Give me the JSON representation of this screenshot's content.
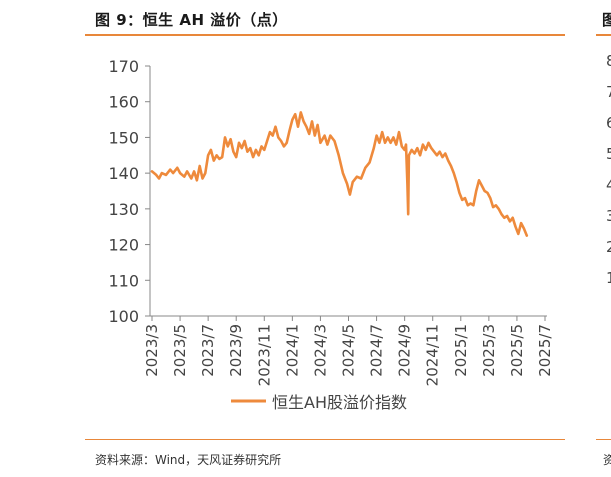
{
  "figure": {
    "title": "图 9：恒生 AH 溢价（点）",
    "source": "资料来源：Wind，天风证券研究所"
  },
  "right_panel": {
    "title_fragment": "图",
    "source_fragment": "资",
    "tick_fragments": [
      "8",
      "7",
      "6",
      "5",
      "4",
      "3",
      "2",
      "1"
    ]
  },
  "colors": {
    "accent": "#e8873a",
    "line": "#ee8a3c"
  },
  "chart_data": {
    "type": "line",
    "title": "",
    "xlabel": "",
    "ylabel": "",
    "ylim": [
      100,
      170
    ],
    "yticks": [
      100,
      110,
      120,
      130,
      140,
      150,
      160,
      170
    ],
    "xticks": [
      "2023/3",
      "2023/5",
      "2023/7",
      "2023/9",
      "2023/11",
      "2024/1",
      "2024/3",
      "2024/5",
      "2024/7",
      "2024/9",
      "2024/11",
      "2025/1",
      "2025/3",
      "2025/5",
      "2025/7"
    ],
    "legend": "bottom-center",
    "series": [
      {
        "name": "恒生AH股溢价指数",
        "values": [
          [
            0.0,
            140.5
          ],
          [
            0.3,
            139.5
          ],
          [
            0.5,
            138.5
          ],
          [
            0.7,
            140.0
          ],
          [
            1.0,
            139.5
          ],
          [
            1.3,
            141.0
          ],
          [
            1.5,
            140.0
          ],
          [
            1.8,
            141.5
          ],
          [
            2.0,
            140.0
          ],
          [
            2.3,
            139.0
          ],
          [
            2.5,
            140.5
          ],
          [
            2.8,
            138.5
          ],
          [
            3.0,
            140.5
          ],
          [
            3.2,
            138.0
          ],
          [
            3.4,
            142.0
          ],
          [
            3.6,
            138.5
          ],
          [
            3.8,
            140.0
          ],
          [
            4.0,
            145.0
          ],
          [
            4.2,
            146.5
          ],
          [
            4.4,
            143.5
          ],
          [
            4.6,
            145.0
          ],
          [
            4.8,
            144.0
          ],
          [
            5.0,
            144.5
          ],
          [
            5.2,
            150.0
          ],
          [
            5.4,
            147.5
          ],
          [
            5.6,
            149.5
          ],
          [
            5.8,
            146.0
          ],
          [
            6.0,
            144.5
          ],
          [
            6.2,
            148.5
          ],
          [
            6.4,
            147.0
          ],
          [
            6.6,
            149.0
          ],
          [
            6.8,
            146.0
          ],
          [
            7.0,
            147.0
          ],
          [
            7.2,
            144.5
          ],
          [
            7.4,
            146.5
          ],
          [
            7.6,
            145.0
          ],
          [
            7.8,
            147.5
          ],
          [
            8.0,
            146.5
          ],
          [
            8.2,
            149.0
          ],
          [
            8.4,
            151.5
          ],
          [
            8.6,
            150.5
          ],
          [
            8.8,
            153.0
          ],
          [
            9.0,
            150.0
          ],
          [
            9.2,
            149.0
          ],
          [
            9.4,
            147.5
          ],
          [
            9.6,
            148.5
          ],
          [
            9.8,
            152.0
          ],
          [
            10.0,
            155.0
          ],
          [
            10.2,
            156.5
          ],
          [
            10.4,
            153.0
          ],
          [
            10.6,
            157.0
          ],
          [
            10.8,
            154.5
          ],
          [
            11.0,
            153.0
          ],
          [
            11.2,
            151.0
          ],
          [
            11.4,
            154.5
          ],
          [
            11.6,
            150.5
          ],
          [
            11.8,
            153.5
          ],
          [
            12.0,
            148.5
          ],
          [
            12.3,
            150.5
          ],
          [
            12.5,
            148.0
          ],
          [
            12.7,
            150.5
          ],
          [
            13.0,
            149.0
          ],
          [
            13.3,
            145.0
          ],
          [
            13.6,
            140.0
          ],
          [
            13.9,
            137.0
          ],
          [
            14.1,
            134.0
          ],
          [
            14.3,
            137.5
          ],
          [
            14.6,
            139.0
          ],
          [
            14.9,
            138.5
          ],
          [
            15.2,
            141.5
          ],
          [
            15.5,
            143.0
          ],
          [
            15.8,
            147.0
          ],
          [
            16.0,
            150.5
          ],
          [
            16.2,
            148.5
          ],
          [
            16.4,
            151.5
          ],
          [
            16.6,
            148.5
          ],
          [
            16.8,
            150.0
          ],
          [
            17.0,
            148.5
          ],
          [
            17.2,
            150.0
          ],
          [
            17.4,
            148.0
          ],
          [
            17.6,
            151.5
          ],
          [
            17.8,
            147.5
          ],
          [
            18.0,
            146.5
          ],
          [
            18.1,
            148.0
          ],
          [
            18.2,
            137.0
          ],
          [
            18.25,
            128.5
          ],
          [
            18.3,
            145.0
          ],
          [
            18.5,
            146.5
          ],
          [
            18.7,
            145.5
          ],
          [
            18.9,
            147.0
          ],
          [
            19.1,
            145.0
          ],
          [
            19.3,
            148.0
          ],
          [
            19.5,
            146.5
          ],
          [
            19.7,
            148.5
          ],
          [
            19.9,
            147.0
          ],
          [
            20.1,
            146.0
          ],
          [
            20.3,
            145.0
          ],
          [
            20.5,
            146.0
          ],
          [
            20.7,
            144.5
          ],
          [
            20.9,
            145.5
          ],
          [
            21.1,
            143.5
          ],
          [
            21.3,
            142.0
          ],
          [
            21.5,
            140.0
          ],
          [
            21.7,
            137.5
          ],
          [
            21.9,
            134.5
          ],
          [
            22.1,
            132.5
          ],
          [
            22.3,
            133.0
          ],
          [
            22.5,
            131.0
          ],
          [
            22.7,
            131.5
          ],
          [
            22.9,
            131.0
          ],
          [
            23.1,
            135.0
          ],
          [
            23.3,
            138.0
          ],
          [
            23.5,
            136.5
          ],
          [
            23.7,
            135.0
          ],
          [
            23.9,
            134.5
          ],
          [
            24.1,
            133.0
          ],
          [
            24.3,
            130.5
          ],
          [
            24.5,
            131.0
          ],
          [
            24.7,
            130.0
          ],
          [
            24.9,
            128.5
          ],
          [
            25.1,
            127.5
          ],
          [
            25.3,
            128.0
          ],
          [
            25.5,
            126.5
          ],
          [
            25.7,
            127.5
          ],
          [
            25.9,
            125.0
          ],
          [
            26.1,
            123.0
          ],
          [
            26.3,
            126.0
          ],
          [
            26.5,
            124.5
          ],
          [
            26.7,
            122.5
          ]
        ]
      }
    ]
  }
}
